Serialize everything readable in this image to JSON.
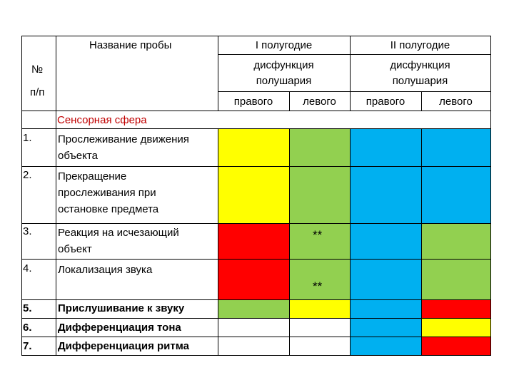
{
  "header": {
    "test_name": "Название пробы",
    "num_line1": "№",
    "num_line2": "п/п",
    "half1": "I полугодие",
    "half2": "II полугодие",
    "dys1": [
      "дисфункция",
      "полушария"
    ],
    "dys2": [
      "дисфункция",
      "полушария"
    ],
    "right1": "правого",
    "left1": "левого",
    "right2": "правого",
    "left2": "левого"
  },
  "section": "Сенсорная сфера",
  "rows": [
    {
      "num": "1.",
      "lines": [
        "Прослеживание движения",
        "объекта"
      ]
    },
    {
      "num": "2.",
      "lines": [
        "Прекращение",
        "прослеживания при",
        "остановке предмета"
      ]
    },
    {
      "num": "3.",
      "lines": [
        "Реакция на исчезающий",
        "объект"
      ]
    },
    {
      "num": "4.",
      "lines": [
        "Локализация звука"
      ]
    },
    {
      "num": "5.",
      "lines": [
        "Прислушивание к звуку"
      ]
    },
    {
      "num": "6.",
      "lines": [
        "Дифференциация тона"
      ]
    },
    {
      "num": "7.",
      "lines": [
        "Дифференциация ритма"
      ]
    }
  ],
  "marks": {
    "row3": "**",
    "row4": "**"
  },
  "colors": {
    "yellow": "#ffff00",
    "green": "#92d050",
    "blue": "#00b0f0",
    "red": "#ff0000",
    "white": "#ffffff"
  }
}
